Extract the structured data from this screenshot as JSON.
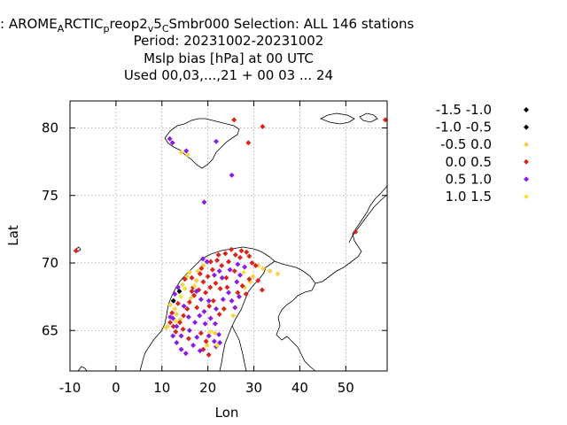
{
  "chart_data": {
    "type": "scatter",
    "title": {
      "line1_a": ": AROME",
      "line1_sub1": "A",
      "line1_b": "RCTIC",
      "line1_sub2": "p",
      "line1_c": "reop2",
      "line1_sub3": "v",
      "line1_d": "5",
      "line1_sub4": "C",
      "line1_e": "Smbr000   Selection: ALL    146 stations",
      "line2": "Period: 20231002-20231002",
      "line3": "Mslp bias [hPa] at  00 UTC",
      "line4": "Used  00,03,...,21  + 00 03 ... 24"
    },
    "xlabel": "Lon",
    "ylabel": "Lat",
    "xlim": [
      -10,
      59
    ],
    "ylim": [
      62,
      82
    ],
    "xticks": [
      "-10",
      "0",
      "10",
      "20",
      "30",
      "40",
      "50"
    ],
    "xtick_values": [
      -10,
      0,
      10,
      20,
      30,
      40,
      50
    ],
    "yticks": [
      "65",
      "70",
      "75",
      "80"
    ],
    "ytick_values": [
      65,
      70,
      75,
      80
    ],
    "grid": true,
    "legend_position": "outside-right",
    "series": [
      {
        "name": "-1.5 -1.0",
        "color": "#000000",
        "points": []
      },
      {
        "name": "-1.0 -0.5",
        "color": "#000000",
        "points": [
          [
            12.5,
            67.2
          ],
          [
            13.8,
            67.9
          ]
        ]
      },
      {
        "name": "-0.5 0.0",
        "color": "#f2d24a",
        "points": [
          [
            14.2,
            78.2
          ],
          [
            15.6,
            78.0
          ],
          [
            11.8,
            66.9
          ],
          [
            13.2,
            66.2
          ],
          [
            14.5,
            68.4
          ],
          [
            15.4,
            69.0
          ],
          [
            16.0,
            69.3
          ],
          [
            17.5,
            68.7
          ],
          [
            19.0,
            69.8
          ],
          [
            31.0,
            69.8
          ],
          [
            32.0,
            69.6
          ],
          [
            33.5,
            69.4
          ],
          [
            35.2,
            69.2
          ],
          [
            29.8,
            69.0
          ],
          [
            11.2,
            65.3
          ],
          [
            14.0,
            65.8
          ],
          [
            16.3,
            67.4
          ],
          [
            12.8,
            66.6
          ],
          [
            19.8,
            63.9
          ],
          [
            21.5,
            64.8
          ],
          [
            25.5,
            66.1
          ],
          [
            28.0,
            68.2
          ],
          [
            29.2,
            68.6
          ],
          [
            17.8,
            69.4
          ],
          [
            10.9,
            65.2
          ]
        ]
      },
      {
        "name": "0.0 0.5",
        "color": "#d9261c",
        "points": [
          [
            25.7,
            80.6
          ],
          [
            28.8,
            78.9
          ],
          [
            31.9,
            80.1
          ],
          [
            -8.7,
            70.9
          ],
          [
            52.1,
            72.3
          ],
          [
            58.6,
            80.6
          ],
          [
            16.8,
            68.2
          ],
          [
            18.6,
            69.6
          ],
          [
            20.6,
            70.1
          ],
          [
            21.0,
            69.5
          ],
          [
            22.3,
            70.6
          ],
          [
            23.8,
            70.7
          ],
          [
            24.5,
            70.1
          ],
          [
            25.1,
            71.0
          ],
          [
            26.0,
            70.6
          ],
          [
            27.0,
            70.4
          ],
          [
            27.3,
            70.9
          ],
          [
            28.4,
            70.8
          ],
          [
            29.6,
            70.0
          ],
          [
            30.4,
            69.8
          ],
          [
            29.0,
            70.5
          ],
          [
            25.8,
            69.4
          ],
          [
            24.0,
            68.9
          ],
          [
            23.0,
            69.8
          ],
          [
            22.0,
            70.2
          ],
          [
            20.0,
            69.0
          ],
          [
            19.0,
            68.6
          ],
          [
            18.0,
            68.0
          ],
          [
            17.0,
            67.6
          ],
          [
            16.0,
            67.1
          ],
          [
            15.5,
            66.6
          ],
          [
            14.7,
            66.1
          ],
          [
            13.9,
            65.6
          ],
          [
            13.0,
            64.9
          ],
          [
            12.5,
            65.3
          ],
          [
            11.8,
            65.6
          ],
          [
            19.5,
            67.8
          ],
          [
            20.5,
            68.2
          ],
          [
            21.7,
            68.5
          ],
          [
            22.7,
            68.1
          ],
          [
            24.2,
            68.2
          ],
          [
            26.5,
            67.8
          ],
          [
            27.5,
            68.3
          ],
          [
            28.3,
            67.7
          ],
          [
            29.0,
            68.8
          ],
          [
            30.9,
            68.7
          ],
          [
            31.8,
            68.0
          ],
          [
            15.0,
            68.8
          ],
          [
            16.5,
            68.9
          ],
          [
            18.3,
            69.2
          ],
          [
            20.3,
            66.8
          ],
          [
            21.2,
            67.2
          ],
          [
            17.6,
            66.7
          ],
          [
            13.5,
            67.0
          ],
          [
            12.2,
            66.3
          ],
          [
            19.0,
            63.6
          ],
          [
            20.2,
            63.2
          ],
          [
            19.6,
            64.2
          ],
          [
            18.5,
            64.8
          ],
          [
            22.5,
            66.2
          ],
          [
            23.5,
            66.6
          ],
          [
            14.6,
            65.1
          ],
          [
            15.8,
            64.4
          ],
          [
            16.5,
            67.9
          ]
        ]
      },
      {
        "name": "0.5 1.0",
        "color": "#8a1ce8",
        "points": [
          [
            11.7,
            79.2
          ],
          [
            12.3,
            78.9
          ],
          [
            15.3,
            78.3
          ],
          [
            21.8,
            79.0
          ],
          [
            25.2,
            76.5
          ],
          [
            19.2,
            74.5
          ],
          [
            12.4,
            64.6
          ],
          [
            13.2,
            64.1
          ],
          [
            14.2,
            63.6
          ],
          [
            15.2,
            63.3
          ],
          [
            16.8,
            63.9
          ],
          [
            17.6,
            64.5
          ],
          [
            18.3,
            63.5
          ],
          [
            16.0,
            65.0
          ],
          [
            17.2,
            65.6
          ],
          [
            18.2,
            66.1
          ],
          [
            19.4,
            65.5
          ],
          [
            20.6,
            65.9
          ],
          [
            21.6,
            65.5
          ],
          [
            22.4,
            64.7
          ],
          [
            21.4,
            64.2
          ],
          [
            20.2,
            64.6
          ],
          [
            19.2,
            66.4
          ],
          [
            20.2,
            67.2
          ],
          [
            21.8,
            66.6
          ],
          [
            23.3,
            67.3
          ],
          [
            24.5,
            67.8
          ],
          [
            25.2,
            67.2
          ],
          [
            26.3,
            68.6
          ],
          [
            27.0,
            69.1
          ],
          [
            28.0,
            69.7
          ],
          [
            26.5,
            69.9
          ],
          [
            24.8,
            69.5
          ],
          [
            23.1,
            68.9
          ],
          [
            22.5,
            69.4
          ],
          [
            21.4,
            69.1
          ],
          [
            19.8,
            70.1
          ],
          [
            18.9,
            70.3
          ],
          [
            11.8,
            66.0
          ],
          [
            13.2,
            65.3
          ],
          [
            14.8,
            66.8
          ],
          [
            15.8,
            66.0
          ],
          [
            17.5,
            67.9
          ],
          [
            18.5,
            67.3
          ],
          [
            13.5,
            68.2
          ],
          [
            12.8,
            67.7
          ],
          [
            25.9,
            66.7
          ],
          [
            26.8,
            67.5
          ],
          [
            21.8,
            63.8
          ],
          [
            22.6,
            64.1
          ],
          [
            14.2,
            64.6
          ],
          [
            12.4,
            65.9
          ]
        ]
      },
      {
        "name": "1.0 1.5",
        "color": "#f2e43c",
        "points": [
          [
            15.0,
            68.1
          ],
          [
            14.1,
            67.5
          ],
          [
            13.0,
            65.7
          ],
          [
            20.5,
            64.9
          ],
          [
            22.0,
            63.9
          ],
          [
            17.1,
            68.3
          ],
          [
            27.8,
            69.3
          ]
        ]
      }
    ]
  }
}
